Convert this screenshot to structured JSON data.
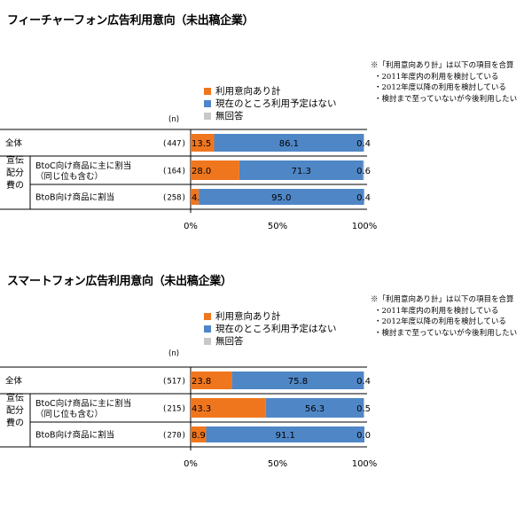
{
  "note_lines": [
    "※「利用意向あり計」は以下の項目を合算",
    "・2011年度内の利用を検討している",
    "・2012年度以降の利用を検討している",
    "・検討まで至っていないが今後利用したい"
  ],
  "legend": [
    "利用意向あり計",
    "現在のところ利用予定はない",
    "無回答"
  ],
  "n_label": "(n)",
  "group_label_chars": [
    "宣",
    "伝",
    "配",
    "分",
    "費",
    "の"
  ],
  "colors": {
    "orange": "#f0761e",
    "blue": "#4f86c6",
    "gray": "#c8c8c8"
  },
  "chart_data": [
    {
      "type": "bar",
      "title": "フィーチャーフォン広告利用意向（未出稿企業）",
      "categories": [
        "全体",
        "BtoC向け商品に主に割当（同じ位も含む）",
        "BtoB向け商品に割当"
      ],
      "category_lines": [
        [
          "全体"
        ],
        [
          "BtoC向け商品に主に割当",
          "（同じ位も含む）"
        ],
        [
          "BtoB向け商品に割当"
        ]
      ],
      "n": [
        "(447)",
        "(164)",
        "(258)"
      ],
      "series": [
        {
          "name": "利用意向あり計",
          "values": [
            13.5,
            28.0,
            4.7
          ]
        },
        {
          "name": "現在のところ利用予定はない",
          "values": [
            86.1,
            71.3,
            95.0
          ]
        },
        {
          "name": "無回答",
          "values": [
            0.4,
            0.6,
            0.4
          ]
        }
      ],
      "x_ticks": [
        "0%",
        "50%",
        "100%"
      ],
      "xlim": [
        0,
        100
      ]
    },
    {
      "type": "bar",
      "title": "スマートフォン広告利用意向（未出稿企業）",
      "categories": [
        "全体",
        "BtoC向け商品に主に割当（同じ位も含む）",
        "BtoB向け商品に割当"
      ],
      "category_lines": [
        [
          "全体"
        ],
        [
          "BtoC向け商品に主に割当",
          "（同じ位も含む）"
        ],
        [
          "BtoB向け商品に割当"
        ]
      ],
      "n": [
        "(517)",
        "(215)",
        "(270)"
      ],
      "series": [
        {
          "name": "利用意向あり計",
          "values": [
            23.8,
            43.3,
            8.9
          ]
        },
        {
          "name": "現在のところ利用予定はない",
          "values": [
            75.8,
            56.3,
            91.1
          ]
        },
        {
          "name": "無回答",
          "values": [
            0.4,
            0.5,
            0.0
          ]
        }
      ],
      "x_ticks": [
        "0%",
        "50%",
        "100%"
      ],
      "xlim": [
        0,
        100
      ]
    }
  ]
}
